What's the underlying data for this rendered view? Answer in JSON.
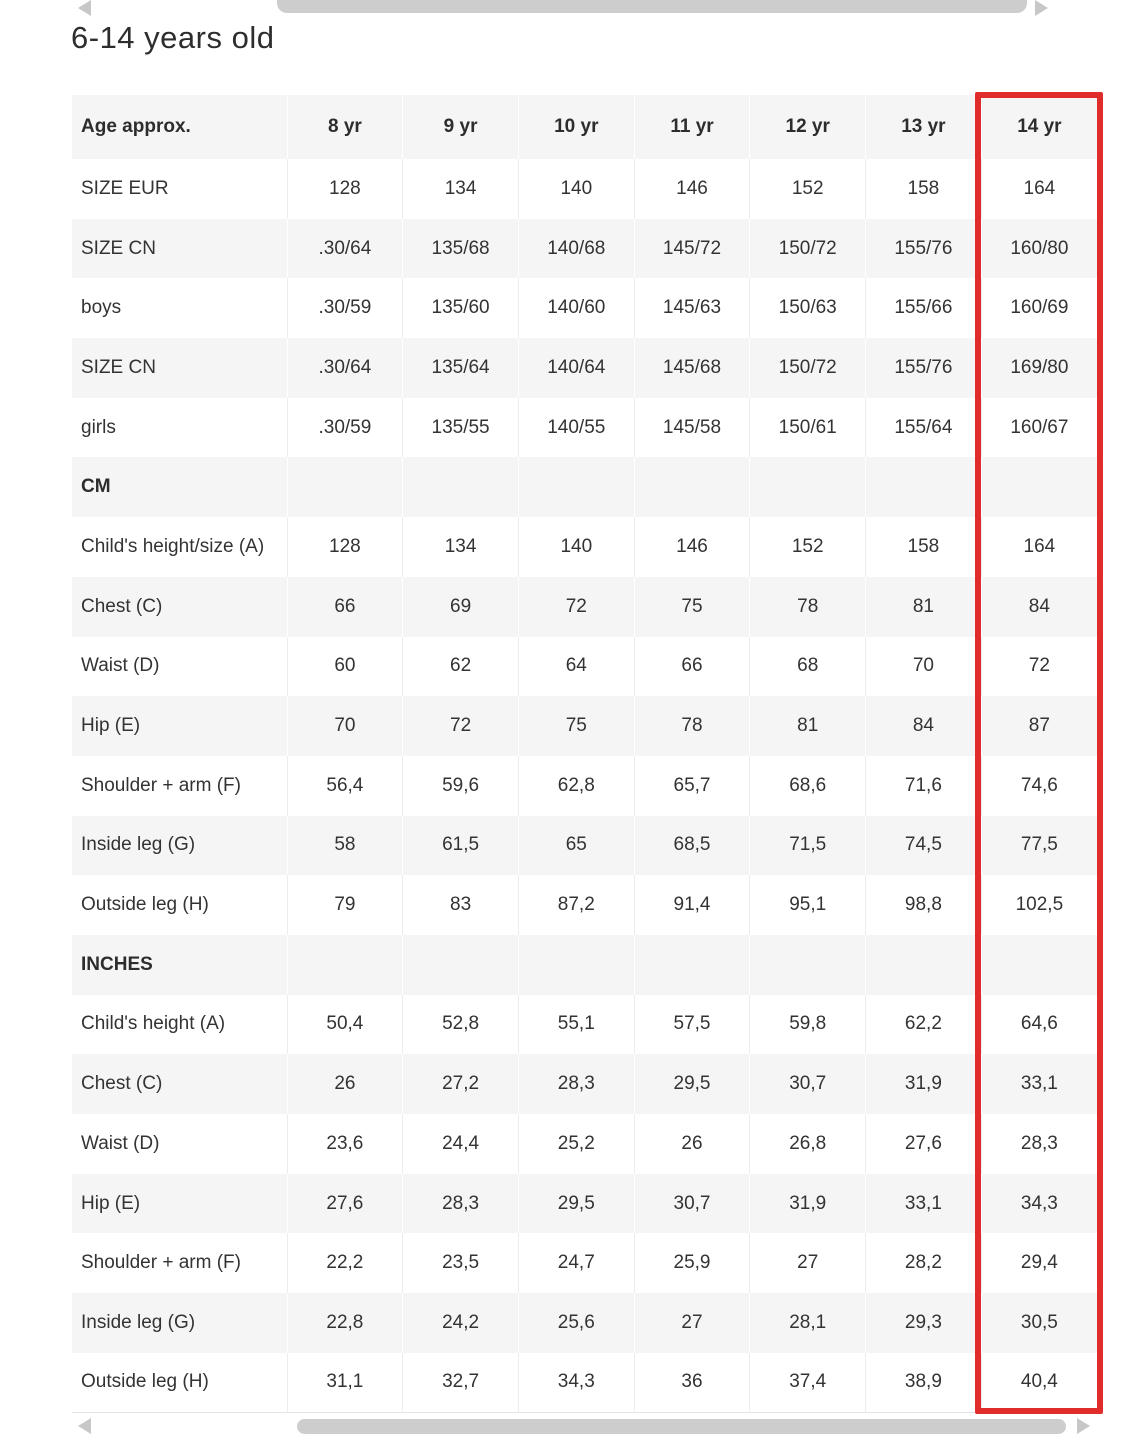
{
  "page": {
    "title": "6-14 years old"
  },
  "colors": {
    "highlight_border": "#e12c2c",
    "row_stripe": "#f5f5f5",
    "text": "#333333",
    "scrollbar": "#cdcdcd"
  },
  "scrollbars": {
    "top": {
      "left_arrow_icon": "chevron-left-icon",
      "right_arrow_icon": "chevron-right-icon"
    },
    "bottom": {
      "left_arrow_icon": "chevron-left-icon",
      "right_arrow_icon": "chevron-right-icon"
    }
  },
  "table": {
    "highlighted_column": "14 yr",
    "header": [
      "Age approx.",
      "8 yr",
      "9 yr",
      "10 yr",
      "11 yr",
      "12 yr",
      "13 yr",
      "14 yr"
    ],
    "rows": [
      {
        "label": "SIZE EUR",
        "section": false,
        "values": [
          "128",
          "134",
          "140",
          "146",
          "152",
          "158",
          "164"
        ]
      },
      {
        "label": "SIZE CN",
        "section": false,
        "values": [
          ".30/64",
          "135/68",
          "140/68",
          "145/72",
          "150/72",
          "155/76",
          "160/80"
        ]
      },
      {
        "label": "boys",
        "section": false,
        "values": [
          ".30/59",
          "135/60",
          "140/60",
          "145/63",
          "150/63",
          "155/66",
          "160/69"
        ]
      },
      {
        "label": "SIZE CN",
        "section": false,
        "values": [
          ".30/64",
          "135/64",
          "140/64",
          "145/68",
          "150/72",
          "155/76",
          "169/80"
        ]
      },
      {
        "label": "girls",
        "section": false,
        "values": [
          ".30/59",
          "135/55",
          "140/55",
          "145/58",
          "150/61",
          "155/64",
          "160/67"
        ]
      },
      {
        "label": "CM",
        "section": true,
        "values": [
          "",
          "",
          "",
          "",
          "",
          "",
          ""
        ]
      },
      {
        "label": "Child's height/size (A)",
        "section": false,
        "values": [
          "128",
          "134",
          "140",
          "146",
          "152",
          "158",
          "164"
        ]
      },
      {
        "label": "Chest (C)",
        "section": false,
        "values": [
          "66",
          "69",
          "72",
          "75",
          "78",
          "81",
          "84"
        ]
      },
      {
        "label": "Waist (D)",
        "section": false,
        "values": [
          "60",
          "62",
          "64",
          "66",
          "68",
          "70",
          "72"
        ]
      },
      {
        "label": "Hip (E)",
        "section": false,
        "values": [
          "70",
          "72",
          "75",
          "78",
          "81",
          "84",
          "87"
        ]
      },
      {
        "label": "Shoulder + arm (F)",
        "section": false,
        "values": [
          "56,4",
          "59,6",
          "62,8",
          "65,7",
          "68,6",
          "71,6",
          "74,6"
        ]
      },
      {
        "label": "Inside leg (G)",
        "section": false,
        "values": [
          "58",
          "61,5",
          "65",
          "68,5",
          "71,5",
          "74,5",
          "77,5"
        ]
      },
      {
        "label": "Outside leg (H)",
        "section": false,
        "values": [
          "79",
          "83",
          "87,2",
          "91,4",
          "95,1",
          "98,8",
          "102,5"
        ]
      },
      {
        "label": "INCHES",
        "section": true,
        "values": [
          "",
          "",
          "",
          "",
          "",
          "",
          ""
        ]
      },
      {
        "label": "Child's height (A)",
        "section": false,
        "values": [
          "50,4",
          "52,8",
          "55,1",
          "57,5",
          "59,8",
          "62,2",
          "64,6"
        ]
      },
      {
        "label": "Chest (C)",
        "section": false,
        "values": [
          "26",
          "27,2",
          "28,3",
          "29,5",
          "30,7",
          "31,9",
          "33,1"
        ]
      },
      {
        "label": "Waist (D)",
        "section": false,
        "values": [
          "23,6",
          "24,4",
          "25,2",
          "26",
          "26,8",
          "27,6",
          "28,3"
        ]
      },
      {
        "label": "Hip (E)",
        "section": false,
        "values": [
          "27,6",
          "28,3",
          "29,5",
          "30,7",
          "31,9",
          "33,1",
          "34,3"
        ]
      },
      {
        "label": "Shoulder + arm (F)",
        "section": false,
        "values": [
          "22,2",
          "23,5",
          "24,7",
          "25,9",
          "27",
          "28,2",
          "29,4"
        ]
      },
      {
        "label": "Inside leg (G)",
        "section": false,
        "values": [
          "22,8",
          "24,2",
          "25,6",
          "27",
          "28,1",
          "29,3",
          "30,5"
        ]
      },
      {
        "label": "Outside leg (H)",
        "section": false,
        "values": [
          "31,1",
          "32,7",
          "34,3",
          "36",
          "37,4",
          "38,9",
          "40,4"
        ]
      }
    ]
  }
}
